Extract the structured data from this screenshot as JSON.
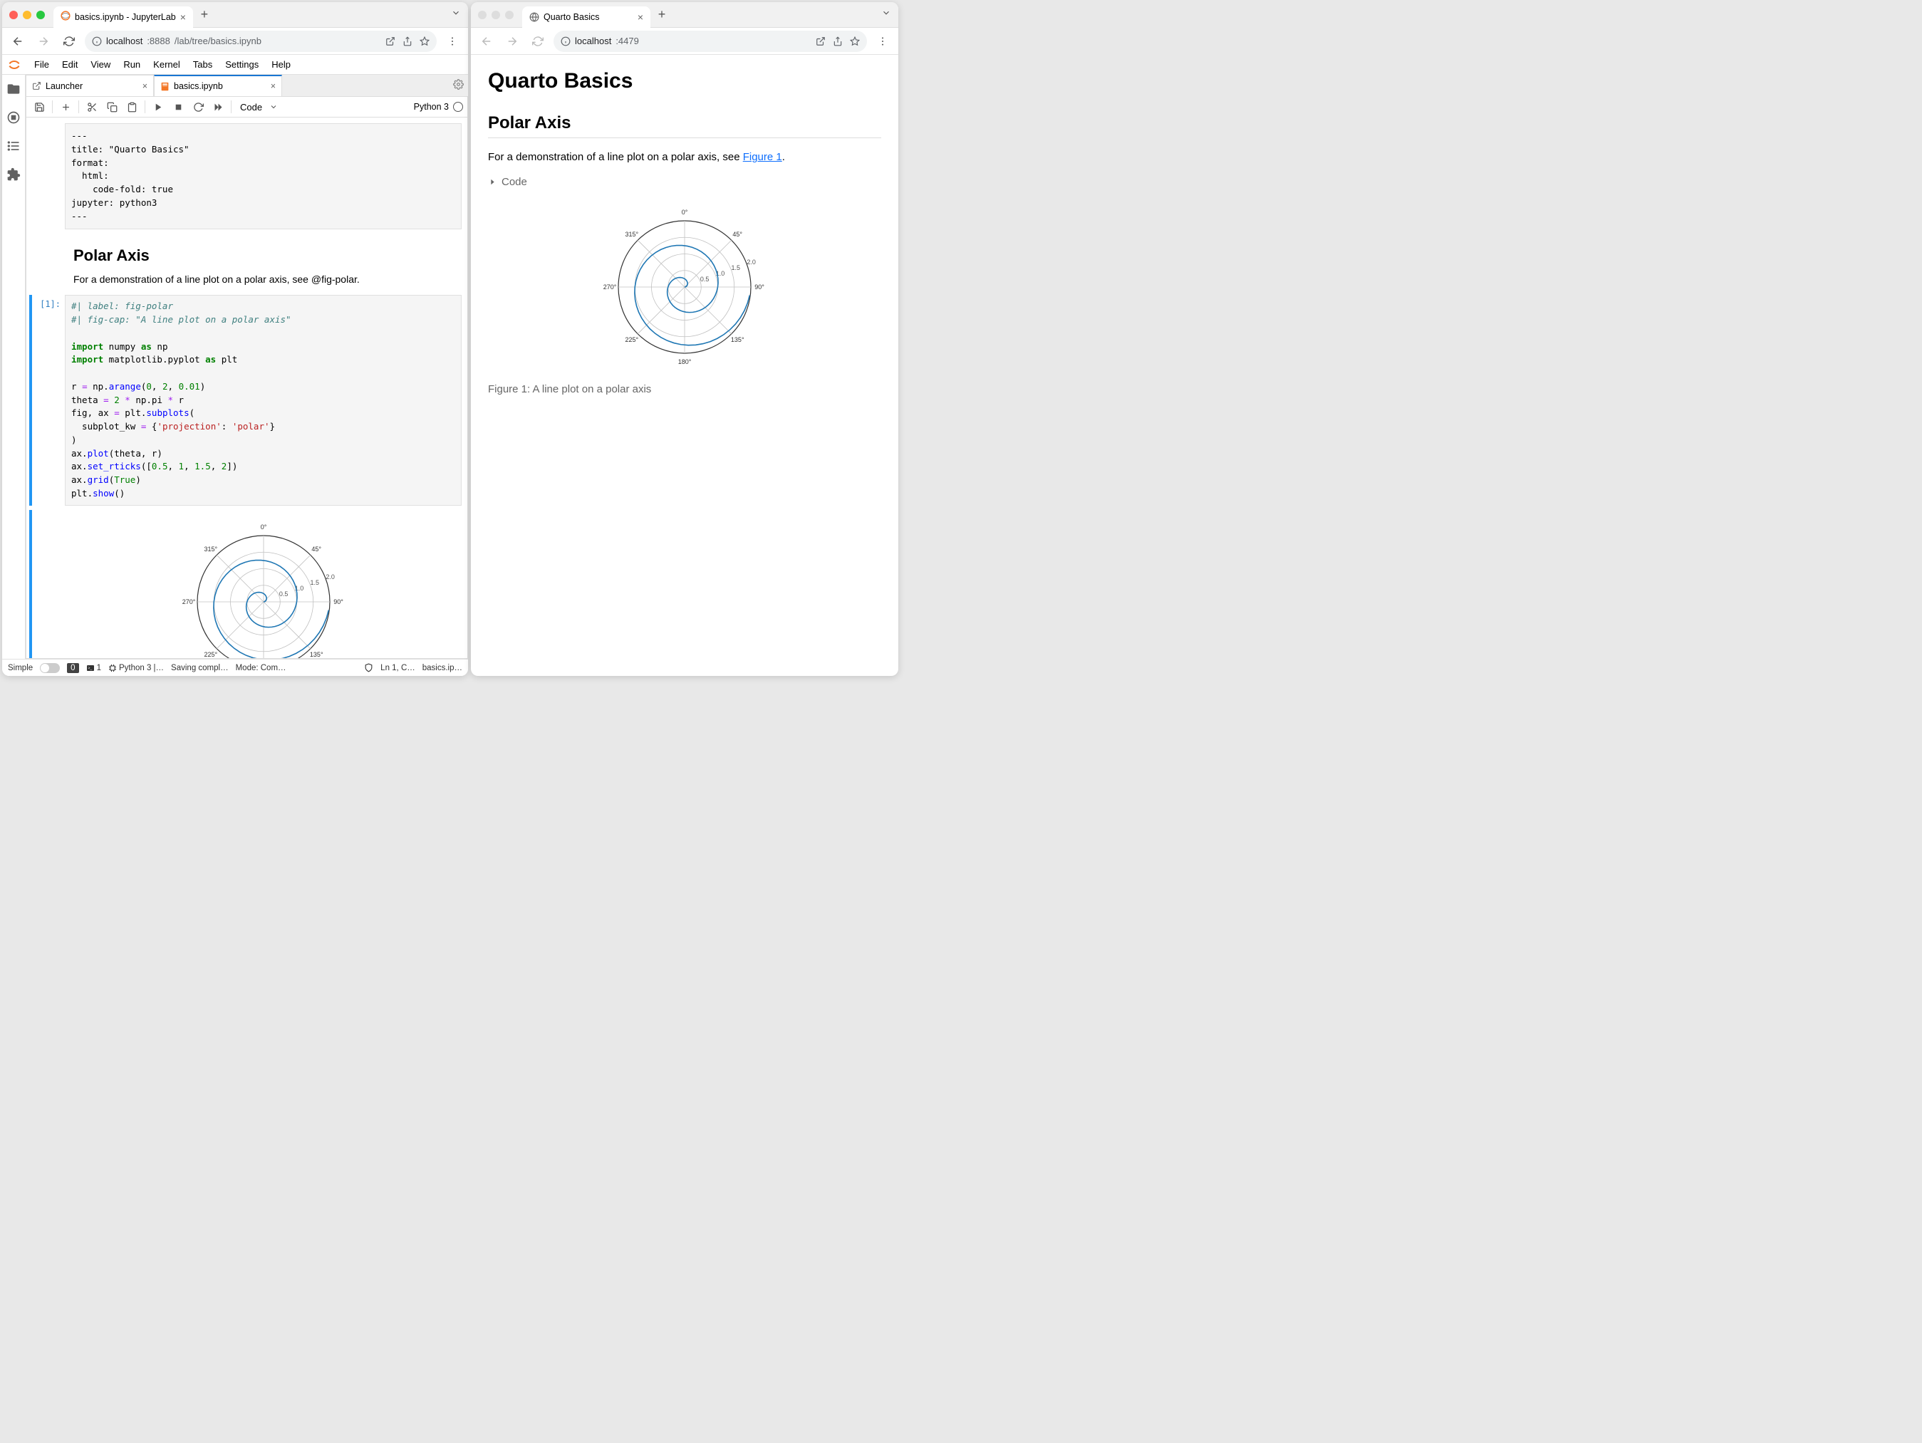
{
  "left": {
    "browserTab": "basics.ipynb - JupyterLab",
    "url_host": "localhost",
    "url_port": ":8888",
    "url_path": "/lab/tree/basics.ipynb",
    "menu": [
      "File",
      "Edit",
      "View",
      "Run",
      "Kernel",
      "Tabs",
      "Settings",
      "Help"
    ],
    "tabs": [
      {
        "label": "Launcher",
        "icon": "launch"
      },
      {
        "label": "basics.ipynb",
        "icon": "nb",
        "active": true
      }
    ],
    "cellType": "Code",
    "kernel": "Python 3",
    "rawCell": "---\ntitle: \"Quarto Basics\"\nformat:\n  html:\n    code-fold: true\njupyter: python3\n---",
    "mdHeading": "Polar Axis",
    "mdPara": "For a demonstration of a line plot on a polar axis, see @fig-polar.",
    "prompt": "[1]:",
    "status": {
      "simple": "Simple",
      "zero": "0",
      "term": "1",
      "kernel": "Python 3 |…",
      "save": "Saving compl…",
      "mode": "Mode: Com…",
      "ln": "Ln 1, C…",
      "file": "basics.ip…"
    }
  },
  "right": {
    "browserTab": "Quarto Basics",
    "url_host": "localhost",
    "url_port": ":4479",
    "title": "Quarto Basics",
    "h2": "Polar Axis",
    "para_pre": "For a demonstration of a line plot on a polar axis, see ",
    "para_link": "Figure 1",
    "para_post": ".",
    "code_toggle": "Code",
    "caption": "Figure 1: A line plot on a polar axis"
  },
  "polar": {
    "rticks": [
      "0.5",
      "1.0",
      "1.5",
      "2.0"
    ],
    "angles": [
      {
        "deg": 0,
        "label": "0°"
      },
      {
        "deg": 45,
        "label": "45°"
      },
      {
        "deg": 90,
        "label": "90°"
      },
      {
        "deg": 135,
        "label": "135°"
      },
      {
        "deg": 180,
        "label": "180°"
      },
      {
        "deg": 225,
        "label": "225°"
      },
      {
        "deg": 270,
        "label": "270°"
      },
      {
        "deg": 315,
        "label": "315°"
      }
    ],
    "line_color": "#1f77b4",
    "grid_color": "#c0c0c0",
    "border_color": "#333333",
    "tick_fontsize": 9,
    "size": 230,
    "spiral_step": 0.02,
    "spiral_max": 2.0
  }
}
